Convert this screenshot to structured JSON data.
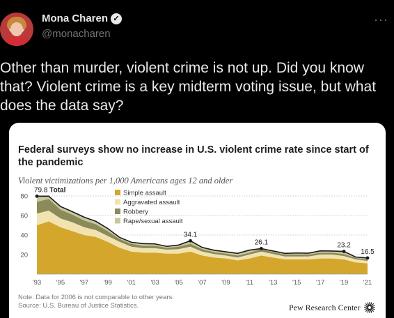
{
  "tweet": {
    "display_name": "Mona Charen",
    "handle": "@monacharen",
    "text": "Other than murder, violent crime is not up. Did you know that? Violent crime is a key midterm voting issue, but what does the data say?",
    "more_label": "···"
  },
  "colors": {
    "simple": "#d4a72c",
    "aggravated": "#f1e3b0",
    "robbery": "#8b8a5a",
    "rape": "#c8c79f",
    "line": "#1a1a1a"
  },
  "chart_data": {
    "type": "area",
    "title": "Federal surveys show no increase in U.S. violent crime rate since start of the pandemic",
    "subtitle": "Violent victimizations per 1,000 Americans ages 12 and older",
    "x": [
      1993,
      1994,
      1995,
      1996,
      1997,
      1998,
      1999,
      2000,
      2001,
      2002,
      2003,
      2004,
      2005,
      2006,
      2007,
      2008,
      2009,
      2010,
      2011,
      2012,
      2013,
      2014,
      2015,
      2016,
      2017,
      2018,
      2019,
      2020,
      2021
    ],
    "x_tick_labels": [
      "'93",
      "'95",
      "'97",
      "'99",
      "'01",
      "'03",
      "'05",
      "'07",
      "'09",
      "'11",
      "'13",
      "'15",
      "'17",
      "'19",
      "'21"
    ],
    "y_ticks": [
      20,
      40,
      60,
      80
    ],
    "ylim": [
      0,
      85
    ],
    "series": [
      {
        "name": "Simple assault",
        "values": [
          50,
          54,
          48,
          44,
          40,
          38,
          33,
          27,
          23,
          22,
          22,
          21,
          21,
          23,
          19,
          17,
          16,
          14,
          16,
          19,
          17,
          15,
          15,
          15,
          16,
          16,
          15,
          12,
          11
        ]
      },
      {
        "name": "Aggravated assault",
        "values": [
          12,
          11,
          9,
          9,
          8,
          7,
          6,
          6,
          5,
          4.5,
          4.5,
          4,
          4.5,
          5,
          4,
          3.5,
          3,
          3,
          4,
          4,
          3.5,
          3,
          3,
          3,
          4,
          4,
          3.5,
          3,
          2.5
        ]
      },
      {
        "name": "Robbery",
        "values": [
          12,
          12,
          9,
          8,
          7,
          6,
          5,
          3,
          3,
          2.5,
          2.5,
          2,
          2.5,
          3,
          2.5,
          2,
          2,
          2,
          2,
          2.5,
          2,
          2,
          2,
          2,
          2,
          2,
          2,
          1.5,
          1.5
        ]
      },
      {
        "name": "Rape/sexual assault",
        "values": [
          5.8,
          2.8,
          3.2,
          2.9,
          3.3,
          3.0,
          2.7,
          1.6,
          1.6,
          2.2,
          1.9,
          1.4,
          1.7,
          3.1,
          1.8,
          1.9,
          1.8,
          2.2,
          2.5,
          0.6,
          1.1,
          1.2,
          1.6,
          1.4,
          1.8,
          1.6,
          2.7,
          0.9,
          1.5
        ]
      }
    ],
    "total": [
      79.8,
      79.8,
      69.2,
      63.9,
      58.3,
      54.0,
      46.7,
      37.6,
      32.6,
      31.2,
      30.9,
      28.4,
      29.7,
      34.1,
      27.3,
      24.4,
      22.8,
      21.2,
      24.5,
      26.1,
      23.6,
      21.2,
      21.6,
      21.4,
      23.8,
      23.6,
      23.2,
      17.4,
      16.5
    ],
    "annotations": [
      {
        "x": 1993,
        "label": "79.8",
        "bold_suffix": "Total"
      },
      {
        "x": 2006,
        "label": "34.1"
      },
      {
        "x": 2012,
        "label": "26.1"
      },
      {
        "x": 2019,
        "label": "23.2"
      },
      {
        "x": 2021,
        "label": "16.5"
      }
    ],
    "legend": [
      "Simple assault",
      "Aggravated assault",
      "Robbery",
      "Rape/sexual assault"
    ],
    "legend_placement": "top-center",
    "grid": true,
    "note": "Note: Data for 2006 is not comparable to other years.",
    "source": "Source: U.S. Bureau of Justice Statistics.",
    "credit": "Pew Research Center"
  }
}
